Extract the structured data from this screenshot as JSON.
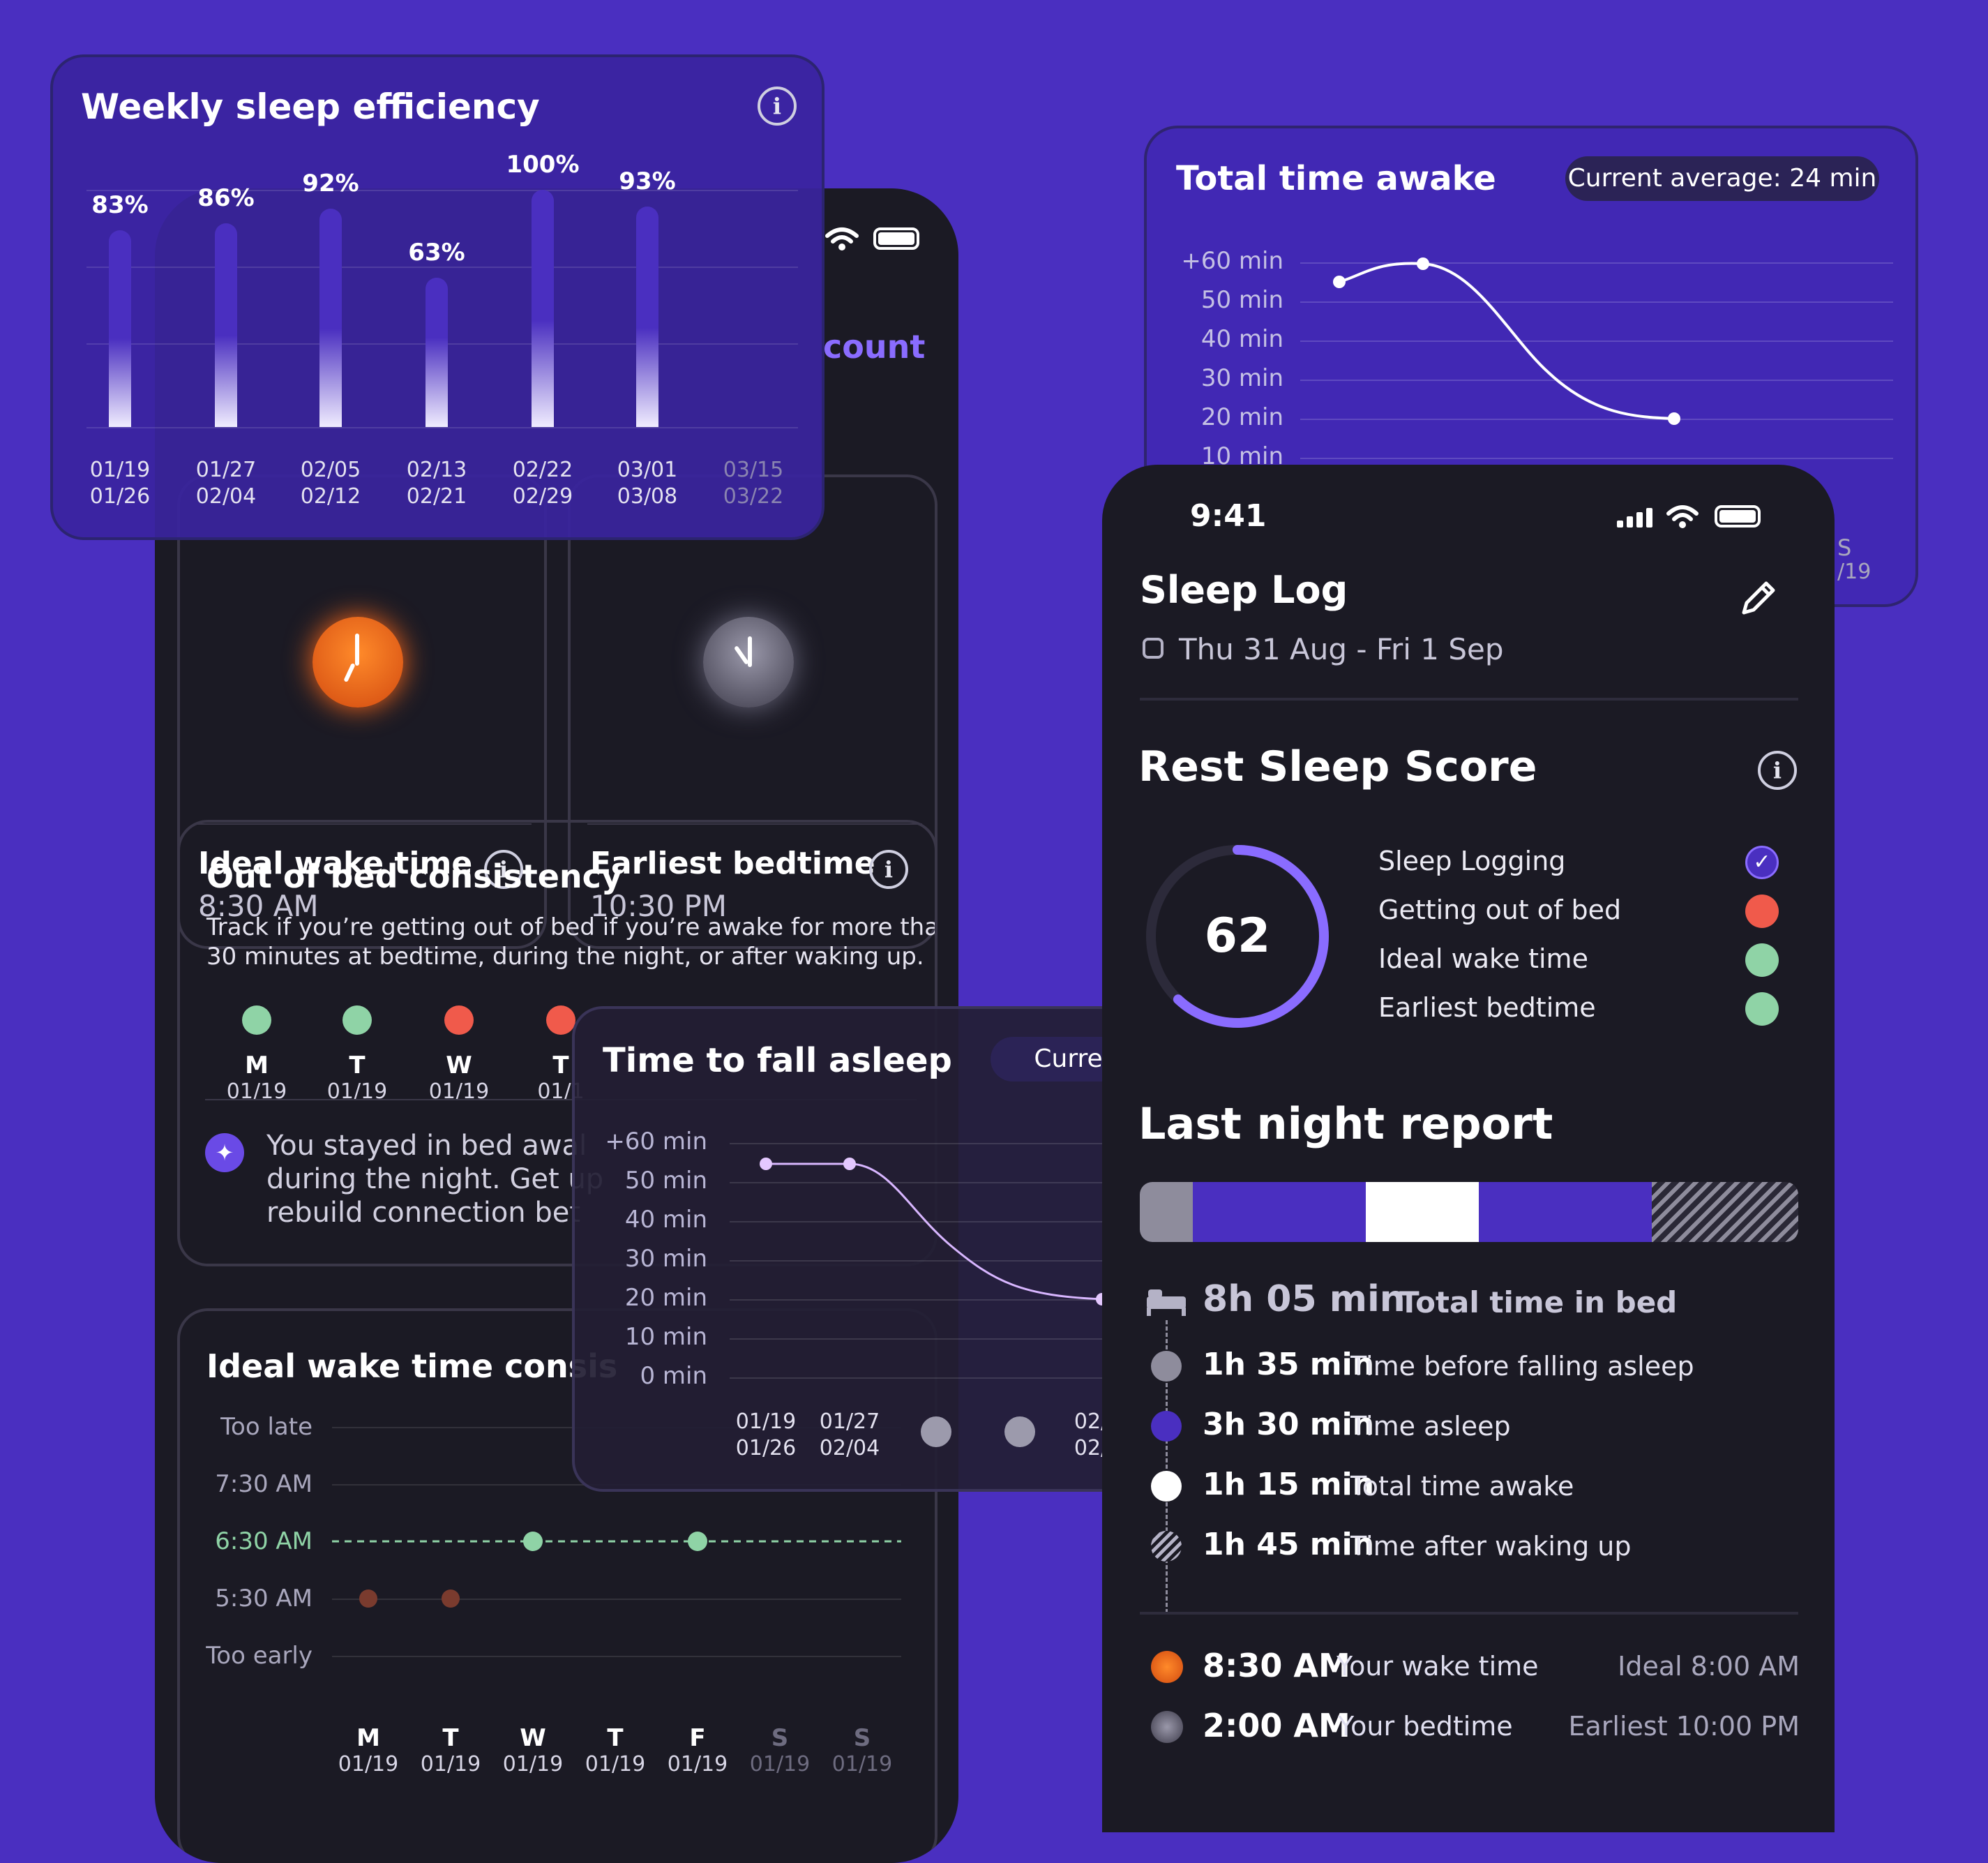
{
  "weekly_efficiency": {
    "title": "Weekly sleep efficiency",
    "bars": [
      {
        "label": "83%",
        "value": 83,
        "top": "01/19",
        "bottom": "01/26"
      },
      {
        "label": "86%",
        "value": 86,
        "top": "01/27",
        "bottom": "02/04"
      },
      {
        "label": "92%",
        "value": 92,
        "top": "02/05",
        "bottom": "02/12"
      },
      {
        "label": "63%",
        "value": 63,
        "top": "02/13",
        "bottom": "02/21"
      },
      {
        "label": "100%",
        "value": 100,
        "top": "02/22",
        "bottom": "02/29"
      },
      {
        "label": "93%",
        "value": 93,
        "top": "03/01",
        "bottom": "03/08"
      },
      {
        "label": "",
        "value": 0,
        "top": "03/15",
        "bottom": "03/22"
      }
    ]
  },
  "total_awake": {
    "title": "Total time awake",
    "badge": "Current average: 24 min",
    "ticks": [
      "+60 min",
      "50 min",
      "40 min",
      "30 min",
      "20 min",
      "10 min"
    ],
    "partial_label_1": "S",
    "partial_label_2": "/19"
  },
  "left_phone": {
    "header_partial": "count",
    "ideal_wake": {
      "title": "Ideal wake time",
      "value": "8:30 AM"
    },
    "earliest_bed": {
      "title": "Earliest bedtime",
      "value": "10:30 PM"
    },
    "oob": {
      "title": "Out of bed consistency",
      "desc_line1": "Track if you’re getting out of bed if you’re awake for more than",
      "desc_line2": "30 minutes at bedtime, during the night, or after waking up.",
      "days": [
        {
          "day": "M",
          "date": "01/19",
          "status": "good",
          "color": "#8fd3a6"
        },
        {
          "day": "T",
          "date": "01/19",
          "status": "good",
          "color": "#8fd3a6"
        },
        {
          "day": "W",
          "date": "01/19",
          "status": "bad",
          "color": "#f05a4b"
        },
        {
          "day": "T",
          "date": "01/1",
          "status": "bad",
          "color": "#f05a4b"
        }
      ],
      "note_line1": "You stayed in bed awal",
      "note_line2": "during the night. Get up",
      "note_line3": "rebuild connection bet"
    },
    "wake_consistency": {
      "title": "Ideal wake time consis",
      "rows": [
        "Too late",
        "7:30 AM",
        "6:30 AM",
        "5:30 AM",
        "Too early"
      ],
      "days": [
        {
          "day": "M",
          "date": "01/19"
        },
        {
          "day": "T",
          "date": "01/19"
        },
        {
          "day": "W",
          "date": "01/19"
        },
        {
          "day": "T",
          "date": "01/19"
        },
        {
          "day": "F",
          "date": "01/19"
        },
        {
          "day": "S",
          "date": "01/19"
        },
        {
          "day": "S",
          "date": "01/19"
        }
      ]
    }
  },
  "fall_asleep": {
    "title": "Time to fall asleep",
    "badge": "Current",
    "ticks": [
      "+60 min",
      "50 min",
      "40 min",
      "30 min",
      "20 min",
      "10 min",
      "0 min"
    ],
    "dates": [
      {
        "top": "01/19",
        "bottom": "01/26"
      },
      {
        "top": "01/27",
        "bottom": "02/04"
      },
      {
        "top": "02/",
        "bottom": "02/"
      }
    ]
  },
  "right_phone": {
    "time": "9:41",
    "title": "Sleep Log",
    "date_range": "Thu 31 Aug - Fri 1 Sep",
    "score_title": "Rest Sleep Score",
    "score": "62",
    "score_fraction": 0.62,
    "score_items": [
      {
        "label": "Sleep Logging",
        "status": "done",
        "color": "#4a2fc0"
      },
      {
        "label": "Getting out of bed",
        "status": "bad",
        "color": "#f05a4b"
      },
      {
        "label": "Ideal wake time",
        "status": "good",
        "color": "#8fd3a6"
      },
      {
        "label": "Earliest bedtime",
        "status": "good",
        "color": "#8fd3a6"
      }
    ],
    "report_title": "Last night report",
    "total_bed": {
      "value": "8h 05 min",
      "label": "Total time in bed"
    },
    "segments": [
      {
        "value": "1h 35 min",
        "label": "Time before falling asleep",
        "color": "#8e8c9c"
      },
      {
        "value": "3h 30 min",
        "label": "Time asleep",
        "color": "#4a2fc0"
      },
      {
        "value": "1h 15 min",
        "label": "Total time awake",
        "color": "#ffffff"
      },
      {
        "value": "1h 45 min",
        "label": "Time after waking up",
        "color": "hatched"
      }
    ],
    "wake": {
      "value": "8:30 AM",
      "label": "Your wake time",
      "ideal": "Ideal 8:00 AM"
    },
    "bed": {
      "value": "2:00 AM",
      "label": "Your bedtime",
      "earliest": "Earliest 10:00 PM"
    }
  }
}
